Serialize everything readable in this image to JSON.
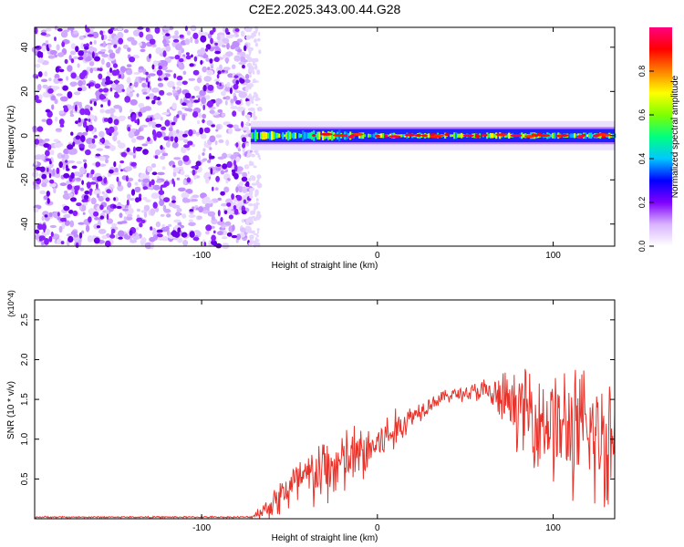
{
  "title": "C2E2.2025.343.00.44.G28",
  "chart_data": [
    {
      "type": "heatmap",
      "xlabel": "Height of straight line (km)",
      "ylabel": "Frequency (Hz)",
      "xlim": [
        -195,
        135
      ],
      "ylim": [
        -50,
        49
      ],
      "xticks": [
        -100,
        0,
        100
      ],
      "xtick_labels": [
        "-100",
        "0",
        "100"
      ],
      "yticks": [
        -40,
        -20,
        0,
        20,
        40
      ],
      "ytick_labels": [
        "-40",
        "-20",
        "0",
        "20",
        "40"
      ],
      "colorbar": {
        "label": "Normalized spectral amplitude",
        "range": [
          0,
          1
        ],
        "ticks": [
          0.0,
          0.2,
          0.4,
          0.6,
          0.8
        ],
        "tick_labels": [
          "0.0",
          "0.2",
          "0.4",
          "0.6",
          "0.8"
        ],
        "colormap": [
          "#ffffff",
          "#d9b3ff",
          "#7f00ff",
          "#0000ff",
          "#00c8ff",
          "#00ff80",
          "#80ff00",
          "#ffff00",
          "#ff8000",
          "#ff0000",
          "#ff0080"
        ]
      },
      "noise_region": {
        "x": [
          -195,
          -72
        ],
        "y": [
          -50,
          49
        ],
        "amplitude": [
          0.05,
          0.3
        ]
      },
      "signal_band": {
        "x": [
          -72,
          135
        ],
        "center_freq": 0,
        "half_width": 3,
        "peak_amplitude": 0.9
      }
    },
    {
      "type": "line",
      "xlabel": "Height of straight line (km)",
      "ylabel": "SNR (10 * v/v)",
      "yscale_label": "(x10^4)",
      "xlim": [
        -195,
        135
      ],
      "ylim": [
        0,
        2.75
      ],
      "xticks": [
        -100,
        0,
        100
      ],
      "xtick_labels": [
        "-100",
        "0",
        "100"
      ],
      "yticks": [
        0.5,
        1.0,
        1.5,
        2.0,
        2.5
      ],
      "ytick_labels": [
        "0.5",
        "1.0",
        "1.5",
        "2.0",
        "2.5"
      ],
      "color": "#e8332b",
      "series": [
        {
          "x": [
            -195,
            -150,
            -100,
            -72,
            -62,
            -55,
            -45,
            -35,
            -25,
            -15,
            -5,
            0,
            10,
            20,
            30,
            40,
            50,
            60,
            70,
            80,
            90,
            100,
            110,
            120,
            130,
            135
          ],
          "y": [
            0.02,
            0.02,
            0.02,
            0.02,
            0.15,
            0.3,
            0.45,
            0.55,
            0.65,
            0.75,
            0.85,
            0.95,
            1.1,
            1.3,
            1.45,
            1.55,
            1.58,
            1.6,
            1.5,
            1.4,
            1.3,
            1.2,
            1.1,
            1.05,
            1.0,
            1.0
          ],
          "spread": [
            0.01,
            0.01,
            0.01,
            0.01,
            0.15,
            0.25,
            0.35,
            0.4,
            0.45,
            0.4,
            0.35,
            0.3,
            0.25,
            0.15,
            0.1,
            0.08,
            0.1,
            0.15,
            0.3,
            0.45,
            0.6,
            0.7,
            0.75,
            0.8,
            0.9,
            0.9
          ]
        }
      ]
    }
  ]
}
